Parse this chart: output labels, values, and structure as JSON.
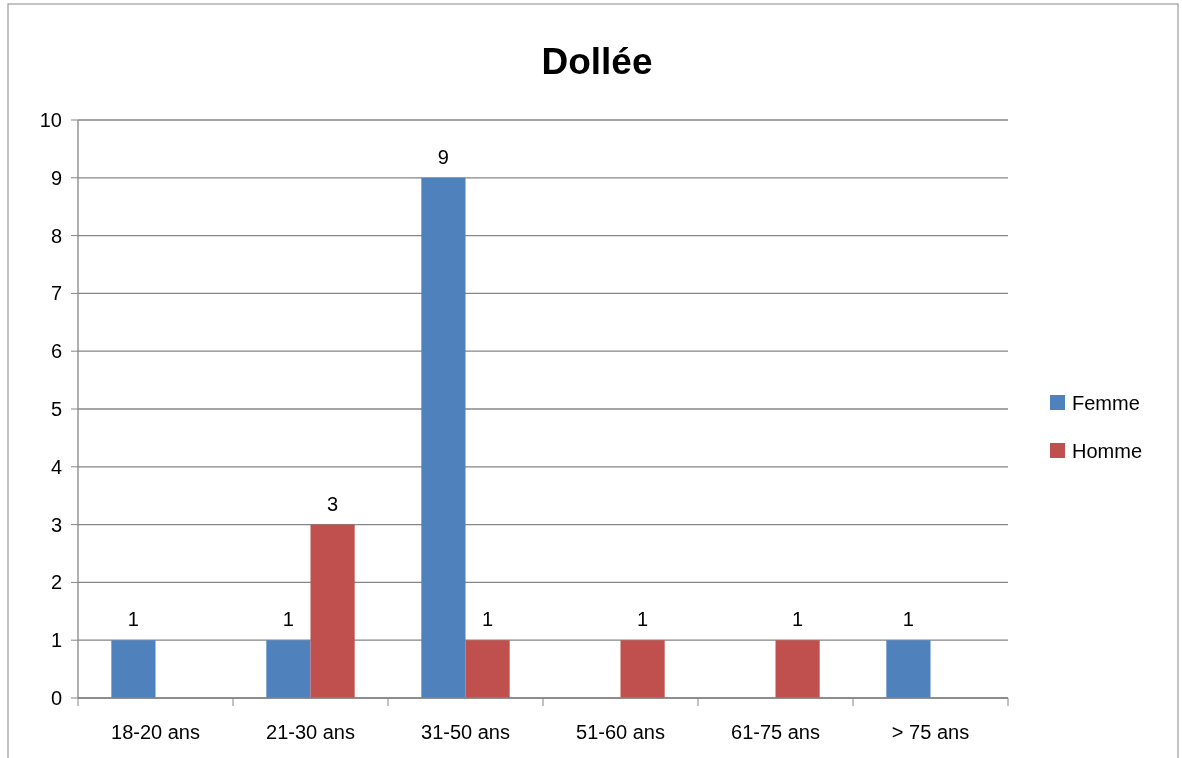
{
  "chart_data": {
    "type": "bar",
    "title": "Dollée",
    "categories": [
      "18-20 ans",
      "21-30 ans",
      "31-50 ans",
      "51-60 ans",
      "61-75 ans",
      "> 75 ans"
    ],
    "series": [
      {
        "name": "Femme",
        "color": "#4f81bd",
        "values": [
          1,
          1,
          9,
          null,
          null,
          1
        ]
      },
      {
        "name": "Homme",
        "color": "#c0504d",
        "values": [
          null,
          3,
          1,
          1,
          1,
          null
        ]
      }
    ],
    "ylim": [
      0,
      10
    ],
    "yticks": [
      0,
      1,
      2,
      3,
      4,
      5,
      6,
      7,
      8,
      9,
      10
    ],
    "grid": "y",
    "legend": "right",
    "data_labels": true
  }
}
